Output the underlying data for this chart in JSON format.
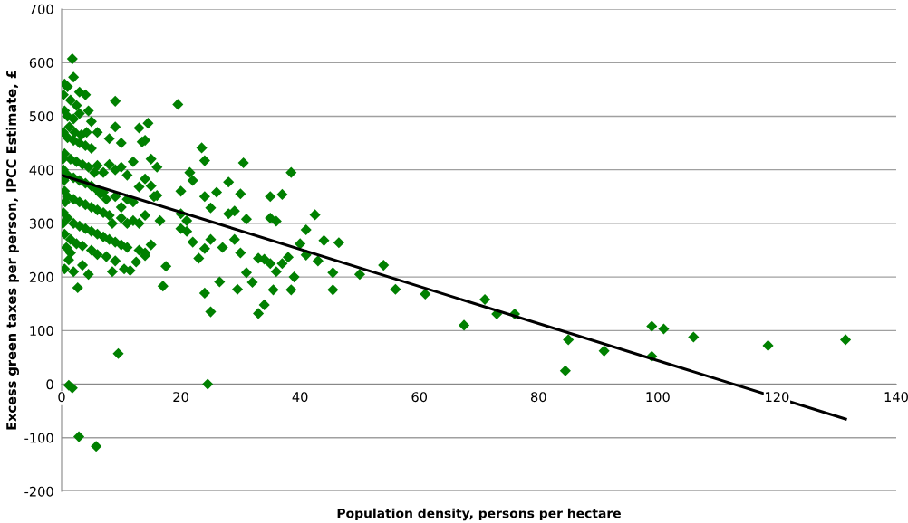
{
  "chart_data": {
    "type": "scatter",
    "xlabel": "Population density, persons per hectare",
    "ylabel": "Excess green taxes per person, IPCC Estimate, £",
    "xlim": [
      0,
      140
    ],
    "xticks": [
      0,
      20,
      40,
      60,
      80,
      100,
      120,
      140
    ],
    "ylim": [
      -200,
      700
    ],
    "yticks": [
      -200,
      -100,
      0,
      100,
      200,
      300,
      400,
      500,
      600,
      700
    ],
    "grid": "y",
    "marker": "diamond",
    "series": [
      {
        "color": "#008000",
        "x": [
          50,
          54,
          56,
          61,
          67.5,
          71,
          73,
          76,
          84.5,
          85,
          91,
          99,
          99,
          101,
          106,
          118.5,
          131.5,
          19.5,
          23.5,
          24,
          21.5,
          30.5,
          38.5,
          22,
          28,
          35,
          37,
          24,
          20,
          26,
          20,
          21,
          25,
          29,
          30,
          31,
          35,
          36,
          42.5,
          41,
          44,
          46.5,
          40,
          38,
          37,
          35,
          34,
          33,
          30,
          25,
          22,
          21,
          23,
          24,
          27,
          29,
          36,
          39,
          41,
          43,
          45.5,
          45.5,
          38.5,
          35.5,
          34,
          33,
          31,
          29.5,
          25,
          24,
          26.5,
          17,
          17.5,
          24.5,
          20,
          28,
          32,
          1.8,
          2,
          0.5,
          1,
          0.3,
          1.5,
          2.5,
          3,
          4,
          9,
          0.5,
          1,
          2,
          3,
          4.5,
          5,
          14.5,
          13,
          9,
          6,
          8,
          0.3,
          1,
          2,
          3,
          4,
          5,
          10,
          12,
          15,
          16,
          13.5,
          14,
          0.5,
          1.5,
          2.5,
          3.5,
          4.5,
          6,
          8,
          9,
          10,
          7,
          11,
          14,
          15,
          13,
          0.3,
          1,
          2,
          3,
          4,
          5,
          6,
          7,
          9,
          11,
          12,
          15.5,
          16,
          0.5,
          1,
          2,
          3,
          4,
          5,
          6,
          7,
          8,
          10,
          12,
          13,
          14,
          16.5,
          0.3,
          1,
          2,
          3,
          4,
          5,
          6,
          7,
          8,
          9,
          10,
          11,
          13,
          14,
          15,
          0.5,
          1.5,
          2.5,
          3.5,
          5,
          6,
          7.5,
          9,
          10.5,
          11.5,
          12.5,
          14,
          0.8,
          1.5,
          1.2,
          0.5,
          2,
          3.5,
          4.5,
          8.5,
          2.7,
          9.5,
          1.2,
          1.8,
          2.9,
          5.8,
          0.2,
          0.4,
          0.6,
          0.2,
          1.3,
          2.2,
          3.3,
          4.2,
          5.5,
          6.5,
          7.5,
          8.5,
          10,
          11
        ],
        "values": [
          205,
          222,
          177,
          168,
          110,
          158,
          131,
          131,
          25,
          83,
          62,
          108,
          52,
          103,
          88,
          72,
          83,
          522,
          441,
          417,
          395,
          413,
          395,
          380,
          377,
          350,
          354,
          350,
          360,
          358,
          318,
          305,
          329,
          323,
          355,
          308,
          310,
          304,
          316,
          288,
          268,
          264,
          262,
          237,
          225,
          225,
          233,
          235,
          245,
          270,
          265,
          285,
          235,
          253,
          255,
          270,
          210,
          200,
          241,
          230,
          208,
          176,
          176,
          176,
          148,
          132,
          208,
          177,
          135,
          170,
          191,
          183,
          220,
          0,
          290,
          318,
          190,
          607,
          573,
          560,
          555,
          540,
          530,
          520,
          545,
          540,
          528,
          510,
          500,
          495,
          505,
          510,
          490,
          487,
          478,
          480,
          470,
          458,
          470,
          460,
          455,
          450,
          445,
          440,
          450,
          415,
          420,
          405,
          452,
          455,
          430,
          420,
          415,
          410,
          405,
          408,
          410,
          400,
          405,
          395,
          390,
          383,
          370,
          368,
          400,
          390,
          385,
          380,
          375,
          370,
          362,
          358,
          350,
          345,
          340,
          350,
          352,
          360,
          350,
          345,
          340,
          335,
          330,
          325,
          320,
          315,
          310,
          305,
          300,
          315,
          305,
          320,
          310,
          300,
          295,
          290,
          285,
          280,
          275,
          270,
          265,
          260,
          255,
          250,
          245,
          260,
          280,
          270,
          262,
          258,
          250,
          242,
          238,
          230,
          215,
          212,
          228,
          240,
          255,
          245,
          232,
          215,
          210,
          222,
          205,
          210,
          180,
          57,
          -2,
          -7,
          -98,
          -116,
          420,
          380,
          340,
          300,
          480,
          470,
          465,
          470,
          395,
          355,
          345,
          300,
          330,
          300
        ]
      },
      {
        "type": "line",
        "color": "#000000",
        "marker": "none",
        "x": [
          0,
          131.5
        ],
        "values": [
          390,
          -65
        ]
      }
    ]
  }
}
